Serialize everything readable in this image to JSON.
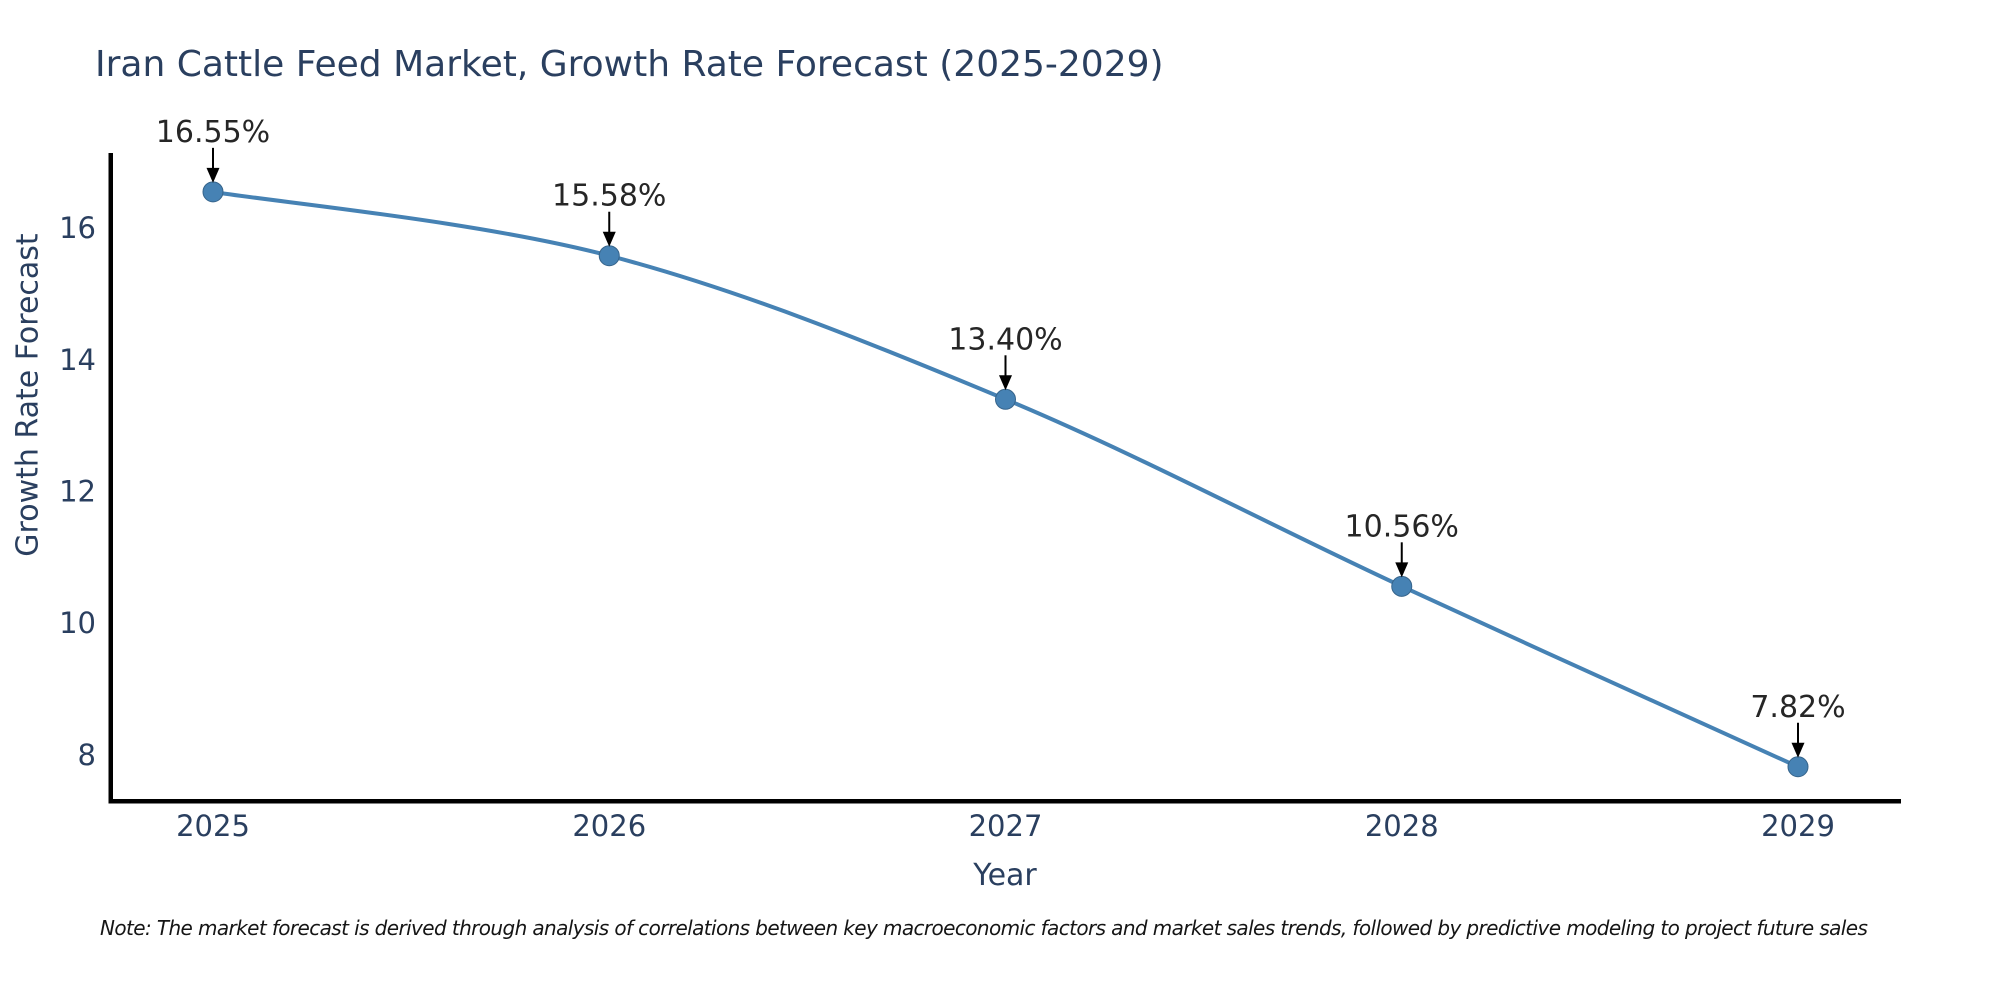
{
  "chart_data": {
    "type": "line",
    "title": "Iran Cattle Feed Market, Growth Rate Forecast (2025-2029)",
    "xlabel": "Year",
    "ylabel": "Growth Rate Forecast",
    "categories": [
      "2025",
      "2026",
      "2027",
      "2028",
      "2029"
    ],
    "series": [
      {
        "name": "Growth Rate Forecast",
        "values": [
          16.55,
          15.58,
          13.4,
          10.56,
          7.82
        ],
        "point_labels": [
          "16.55%",
          "15.58%",
          "13.40%",
          "10.56%",
          "7.82%"
        ],
        "color": "#4682B4"
      }
    ],
    "yticks": [
      8,
      10,
      12,
      14,
      16
    ],
    "ylim": [
      7.3,
      17.14
    ],
    "line_shape": "spline",
    "grid": false,
    "legend": "none",
    "annotations": "value labels with black down arrows above each point"
  },
  "footnote": {
    "text": "Note: The market forecast is derived through analysis of correlations between key macroeconomic factors and market sales trends, followed by predictive modeling to project future sales"
  },
  "colors": {
    "title_text": "#2a3f5f",
    "axis_text": "#2a3f5f",
    "annotation_text": "#262626",
    "spine": "#000000",
    "line": "#4682B4",
    "marker_stroke": "#36648B",
    "arrow": "#000000",
    "background": "#ffffff"
  }
}
